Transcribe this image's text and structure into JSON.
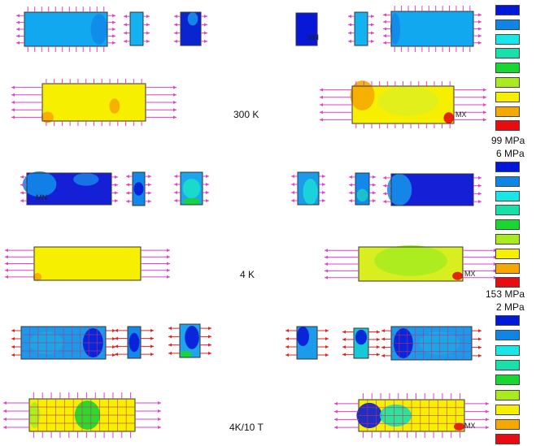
{
  "rows": [
    {
      "id": "row-300k",
      "label": "300 K"
    },
    {
      "id": "row-4k",
      "label": "4 K"
    },
    {
      "id": "row-4k10t",
      "label": "4K/10 T"
    }
  ],
  "markers": {
    "min": "MN",
    "max": "MX"
  },
  "legends": [
    {
      "id": "legend-1",
      "max_label": "99 MPa",
      "min_label": "6 MPa"
    },
    {
      "id": "legend-2",
      "max_label": "153 MPa",
      "min_label": "2 MPa"
    },
    {
      "id": "legend-3",
      "max_label": "",
      "min_label": ""
    }
  ],
  "colormap": [
    "#0018d8",
    "#0f86e6",
    "#19e6e6",
    "#19e0a8",
    "#19d631",
    "#a8ec1f",
    "#f6f000",
    "#f5a800",
    "#e60c10"
  ],
  "colors": {
    "arrow": "#e040c8",
    "arrow_red": "#e02020",
    "outline": "#333333",
    "mesh": "#c03070"
  }
}
